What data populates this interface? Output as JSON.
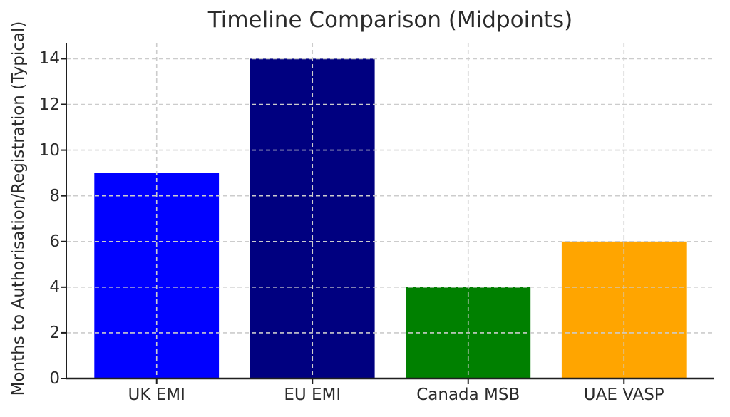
{
  "chart_data": {
    "type": "bar",
    "title": "Timeline Comparison (Midpoints)",
    "xlabel": "",
    "ylabel": "Months to Authorisation/Registration (Typical)",
    "categories": [
      "UK EMI",
      "EU EMI",
      "Canada MSB",
      "UAE VASP"
    ],
    "values": [
      9,
      14,
      4,
      6
    ],
    "bar_colors": [
      "#0000ff",
      "#000080",
      "#008000",
      "#ffa500"
    ],
    "yticks": [
      0,
      2,
      4,
      6,
      8,
      10,
      12,
      14
    ],
    "ylim": [
      0,
      14.7
    ],
    "grid": "dashed",
    "grid_on": true,
    "legend": "none",
    "colors": {
      "background": "#ffffff",
      "grid_line": "#cccccc",
      "axis_line": "#1f1f1f",
      "text": "#2b2b2b"
    }
  }
}
